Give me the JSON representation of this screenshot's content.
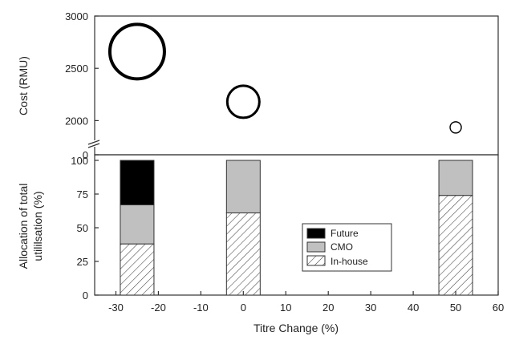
{
  "chart_data": [
    {
      "type": "bubble",
      "panel": "top",
      "ylabel": "Cost (RMU)",
      "ylim": [
        0,
        3000
      ],
      "y_axis_break": true,
      "yticks": [
        0,
        2000,
        2500,
        3000
      ],
      "yticklabels": [
        "0",
        "2000",
        "2500",
        "3000"
      ],
      "points": [
        {
          "x": -25,
          "y": 2660,
          "size": 3
        },
        {
          "x": 0,
          "y": 2180,
          "size": 2
        },
        {
          "x": 50,
          "y": 1935,
          "size": 1
        }
      ]
    },
    {
      "type": "stacked_bar",
      "panel": "bottom",
      "ylabel": "Allocation of total utililsation (%)",
      "ylabel_lines": [
        "Allocation of total",
        "utililsation (%)"
      ],
      "xlabel": "Titre Change (%)",
      "xlim": [
        -35,
        60
      ],
      "ylim": [
        0,
        100
      ],
      "xticks": [
        -30,
        -20,
        -10,
        0,
        10,
        20,
        30,
        40,
        50,
        60
      ],
      "xticklabels": [
        "-30",
        "-20",
        "-10",
        "0",
        "10",
        "20",
        "30",
        "40",
        "50",
        "60"
      ],
      "yticks": [
        0,
        25,
        50,
        75,
        100
      ],
      "yticklabels": [
        "0",
        "25",
        "50",
        "75",
        "100"
      ],
      "categories": [
        -25,
        0,
        50
      ],
      "series": [
        {
          "name": "In-house",
          "values": [
            38,
            61,
            74
          ]
        },
        {
          "name": "CMO",
          "values": [
            29,
            39,
            26
          ]
        },
        {
          "name": "Future",
          "values": [
            33,
            0,
            0
          ]
        }
      ],
      "legend": {
        "position": "center-right",
        "entries": [
          "Future",
          "CMO",
          "In-house"
        ]
      },
      "colors": {
        "Future": "#000000",
        "CMO": "#c0c0c0",
        "In-house": "hatch"
      }
    }
  ]
}
